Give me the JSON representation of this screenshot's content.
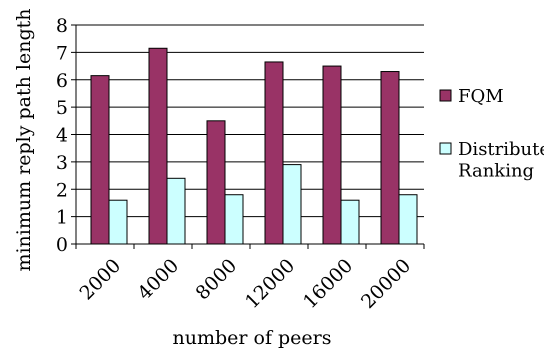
{
  "chart_data": {
    "type": "bar",
    "categories": [
      "2000",
      "4000",
      "8000",
      "12000",
      "16000",
      "20000"
    ],
    "series": [
      {
        "name": "FQM",
        "values": [
          6.15,
          7.15,
          4.5,
          6.65,
          6.5,
          6.3
        ]
      },
      {
        "name": "Distributed Ranking",
        "values": [
          1.6,
          2.4,
          1.8,
          2.9,
          1.6,
          1.8
        ]
      }
    ],
    "xlabel": "number of peers",
    "ylabel": "minimum reply path length",
    "ylim": [
      0,
      8
    ],
    "yticks": [
      "0",
      "1",
      "2",
      "3",
      "4",
      "5",
      "6",
      "7",
      "8"
    ],
    "grid": true,
    "legend_position": "right",
    "legend_lines": [
      [
        "FQM"
      ],
      [
        "Distributed",
        "Ranking"
      ]
    ],
    "colors": {
      "FQM": "#993366",
      "Distributed Ranking": "#ccffff"
    }
  }
}
